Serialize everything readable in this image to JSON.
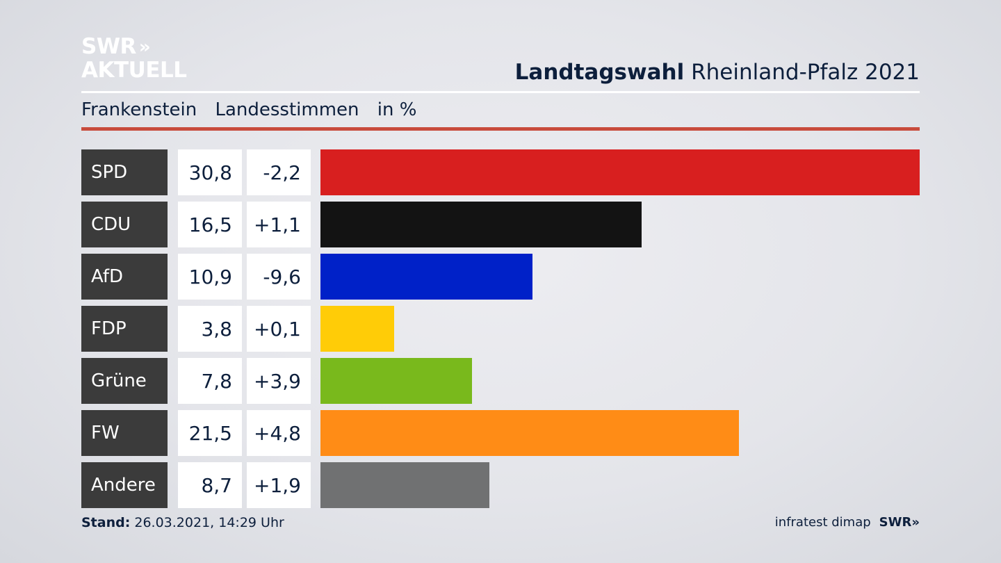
{
  "brand": {
    "line1": "SWR",
    "line2": "AKTUELL",
    "chevrons": "»"
  },
  "title": {
    "bold": "Landtagswahl",
    "regular": "Rheinland-Pfalz 2021"
  },
  "subtitle": {
    "region": "Frankenstein",
    "type": "Landesstimmen",
    "unit": "in %"
  },
  "colors": {
    "SPD": "#d81f1f",
    "CDU": "#131313",
    "AfD": "#0021c8",
    "FDP": "#ffcc07",
    "Grüne": "#79b91c",
    "FW": "#ff8c16",
    "Andere": "#707172"
  },
  "chart_data": {
    "type": "bar",
    "orientation": "horizontal",
    "categories": [
      "SPD",
      "CDU",
      "AfD",
      "FDP",
      "Grüne",
      "FW",
      "Andere"
    ],
    "values": [
      30.8,
      16.5,
      10.9,
      3.8,
      7.8,
      21.5,
      8.7
    ],
    "labels": [
      "30,8",
      "16,5",
      "10,9",
      "3,8",
      "7,8",
      "21,5",
      "8,7"
    ],
    "differences": [
      "-2,2",
      "+1,1",
      "-9,6",
      "+0,1",
      "+3,9",
      "+4,8",
      "+1,9"
    ],
    "xlim": [
      0,
      30.8
    ]
  },
  "footer": {
    "stand_label": "Stand:",
    "stand_value": "26.03.2021, 14:29 Uhr",
    "source": "infratest dimap",
    "logo": "SWR",
    "logo_chevrons": "»"
  }
}
